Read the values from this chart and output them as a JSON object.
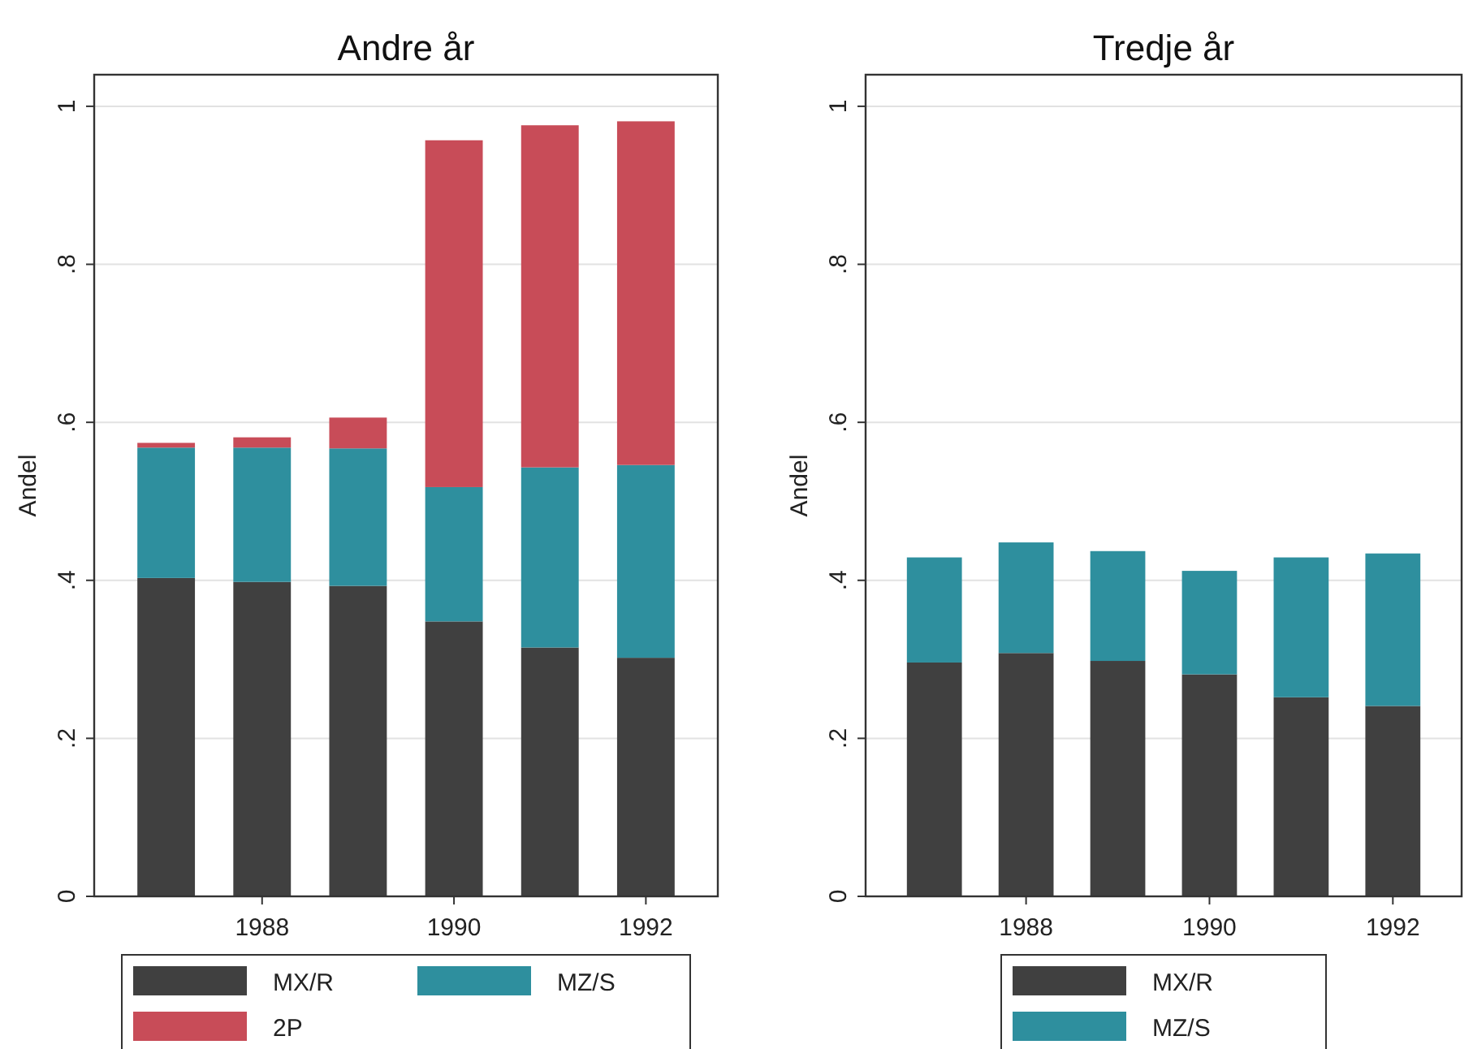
{
  "chart_data": [
    {
      "type": "bar",
      "title": "Andre år",
      "ylabel": "Andel",
      "stacked": true,
      "x": [
        1987,
        1988,
        1989,
        1990,
        1991,
        1992
      ],
      "xlim": [
        1986.25,
        1992.75
      ],
      "xticks": [
        1988,
        1990,
        1992
      ],
      "ylim": [
        0,
        1.04
      ],
      "yticks": [
        {
          "value": 0,
          "label": "0"
        },
        {
          "value": 0.2,
          "label": ".2"
        },
        {
          "value": 0.4,
          "label": ".4"
        },
        {
          "value": 0.6,
          "label": ".6"
        },
        {
          "value": 0.8,
          "label": ".8"
        },
        {
          "value": 1,
          "label": "1"
        }
      ],
      "grid": "y",
      "legend": "bottom",
      "series": [
        {
          "name": "MX/R",
          "color": "#404040",
          "values": [
            0.403,
            0.398,
            0.393,
            0.348,
            0.315,
            0.302
          ]
        },
        {
          "name": "MZ/S",
          "color": "#2e8f9e",
          "values": [
            0.165,
            0.17,
            0.174,
            0.17,
            0.228,
            0.244
          ]
        },
        {
          "name": "2P",
          "color": "#c84c58",
          "values": [
            0.006,
            0.013,
            0.039,
            0.439,
            0.433,
            0.435
          ]
        }
      ]
    },
    {
      "type": "bar",
      "title": "Tredje år",
      "ylabel": "Andel",
      "stacked": true,
      "x": [
        1987,
        1988,
        1989,
        1990,
        1991,
        1992
      ],
      "xlim": [
        1986.25,
        1992.75
      ],
      "xticks": [
        1988,
        1990,
        1992
      ],
      "ylim": [
        0,
        1.04
      ],
      "yticks": [
        {
          "value": 0,
          "label": "0"
        },
        {
          "value": 0.2,
          "label": ".2"
        },
        {
          "value": 0.4,
          "label": ".4"
        },
        {
          "value": 0.6,
          "label": ".6"
        },
        {
          "value": 0.8,
          "label": ".8"
        },
        {
          "value": 1,
          "label": "1"
        }
      ],
      "grid": "y",
      "legend": "bottom",
      "series": [
        {
          "name": "MX/R",
          "color": "#404040",
          "values": [
            0.296,
            0.308,
            0.298,
            0.281,
            0.252,
            0.241
          ]
        },
        {
          "name": "MZ/S",
          "color": "#2e8f9e",
          "values": [
            0.133,
            0.14,
            0.139,
            0.131,
            0.177,
            0.193
          ]
        }
      ]
    }
  ]
}
